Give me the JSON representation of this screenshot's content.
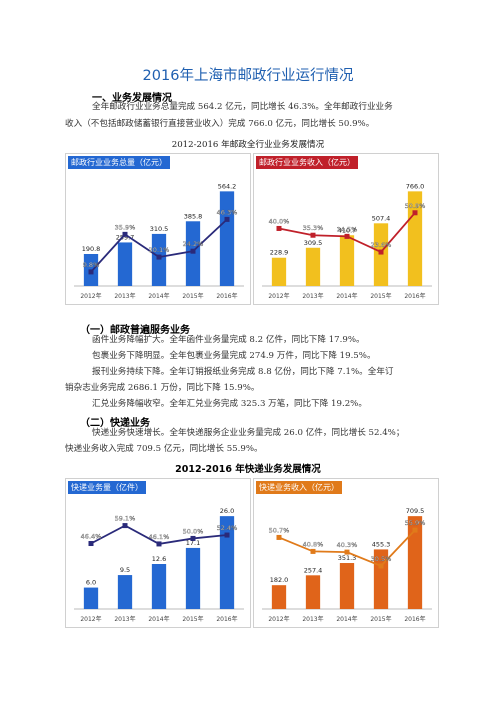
{
  "title": "2016年上海市邮政行业运行情况",
  "section1": {
    "heading": "一、业务发展情况",
    "para_line1": "全年邮政行业业务总量完成 564.2 亿元，同比增长 46.3%。全年邮政行业业务",
    "para_line2": "收入（不包括邮政储蓄银行直接营业收入）完成 766.0 亿元，同比增长 50.9%。",
    "caption": "2012-2016 年邮政全行业业务发展情况"
  },
  "sub1": {
    "heading": "（一）邮政普遍服务业务",
    "lines": [
      "函件业务降幅扩大。全年函件业务量完成 8.2 亿件，同比下降 17.9%。",
      "包裹业务下降明显。全年包裹业务量完成 274.9 万件，同比下降 19.5%。",
      "报刊业务持续下降。全年订销报纸业务完成 8.8 亿份，同比下降 7.1%。全年订",
      "销杂志业务完成 2686.1 万份，同比下降 15.9%。",
      "汇兑业务降幅收窄。全年汇兑业务完成 325.3 万笔，同比下降 19.2%。"
    ]
  },
  "sub2": {
    "heading": "（二）快递业务",
    "line1": "快递业务快速增长。全年快递服务企业业务量完成 26.0 亿件，同比增长 52.4%；",
    "line2": "快递业务收入完成 709.5 亿元，同比增长 55.9%。",
    "caption": "2012-2016 年快递业务发展情况"
  },
  "chart_data": [
    {
      "type": "bar",
      "title": "邮政行业业务总量（亿元）",
      "categories": [
        "2012年",
        "2013年",
        "2014年",
        "2015年",
        "2016年"
      ],
      "values": [
        190.8,
        259.7,
        310.5,
        385.8,
        564.2
      ],
      "value_labels": [
        "190.8",
        "259.7",
        "310.5",
        "385.8",
        "564.2"
      ],
      "line_values": [
        9.8,
        35.9,
        20.1,
        24.2,
        46.3
      ],
      "line_labels": [
        "9.8%",
        "35.9%",
        "20.1%",
        "24.2%",
        "46.3%"
      ],
      "bar_color": "#2468d2",
      "line_color": "#2a2a7a",
      "title_bg": "#2468d2"
    },
    {
      "type": "bar",
      "title": "邮政行业业务收入（亿元）",
      "categories": [
        "2012年",
        "2013年",
        "2014年",
        "2015年",
        "2016年"
      ],
      "values": [
        228.9,
        309.5,
        410.7,
        507.4,
        766.0
      ],
      "value_labels": [
        "228.9",
        "309.5",
        "410.7",
        "507.4",
        "766.0"
      ],
      "line_values": [
        40.0,
        35.3,
        34.5,
        23.6,
        50.9
      ],
      "line_labels": [
        "40.0%",
        "35.3%",
        "34.5%",
        "23.6%",
        "50.9%"
      ],
      "bar_color": "#f2c01e",
      "line_color": "#c0202a",
      "title_bg": "#c0202a"
    },
    {
      "type": "bar",
      "title": "快递业务量（亿件）",
      "categories": [
        "2012年",
        "2013年",
        "2014年",
        "2015年",
        "2016年"
      ],
      "values": [
        6.0,
        9.5,
        12.6,
        17.1,
        26.0
      ],
      "value_labels": [
        "6.0",
        "9.5",
        "12.6",
        "17.1",
        "26.0"
      ],
      "line_values": [
        46.4,
        59.1,
        46.1,
        50.0,
        52.4
      ],
      "line_labels": [
        "46.4%",
        "59.1%",
        "46.1%",
        "50.0%",
        "52.4%"
      ],
      "bar_color": "#2468d2",
      "line_color": "#2a2a7a",
      "title_bg": "#2468d2"
    },
    {
      "type": "bar",
      "title": "快递业务收入（亿元）",
      "categories": [
        "2012年",
        "2013年",
        "2014年",
        "2015年",
        "2016年"
      ],
      "values": [
        182.0,
        257.4,
        351.3,
        455.3,
        709.5
      ],
      "value_labels": [
        "182.0",
        "257.4",
        "351.3",
        "455.3",
        "709.5"
      ],
      "line_values": [
        50.7,
        40.8,
        40.3,
        30.5,
        55.9
      ],
      "line_labels": [
        "50.7%",
        "40.8%",
        "40.3%",
        "30.5%",
        "55.9%"
      ],
      "bar_color": "#e0641a",
      "line_color": "#e07a1a",
      "title_bg": "#e07a1a"
    }
  ]
}
